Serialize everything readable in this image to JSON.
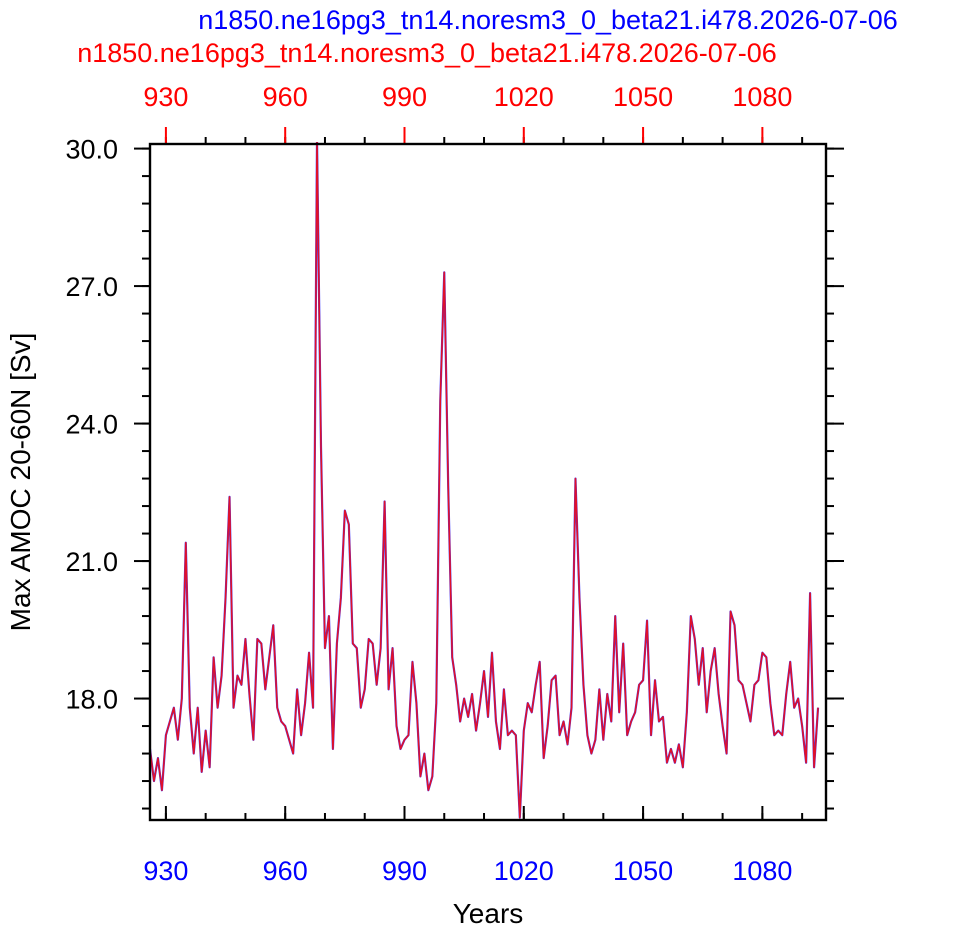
{
  "titles": {
    "blue": "n1850.ne16pg3_tn14.noresm3_0_beta21.i478.2026-07-06",
    "red": "n1850.ne16pg3_tn14.noresm3_0_beta21.i478.2026-07-06"
  },
  "colors": {
    "blue": "#0000ff",
    "red": "#ff0000",
    "line_blue": "#3a3aff",
    "line_red": "#e0102a",
    "axis": "#000000"
  },
  "chart_data": {
    "type": "line",
    "xlabel": "Years",
    "ylabel": "Max AMOC 20-60N [Sv]",
    "xlim": [
      926,
      1096
    ],
    "ylim": [
      15.35,
      30.1
    ],
    "x_ticks": [
      930,
      960,
      990,
      1020,
      1050,
      1080
    ],
    "x_tick_labels": [
      "930",
      "960",
      "990",
      "1020",
      "1050",
      "1080"
    ],
    "y_ticks": [
      18.0,
      21.0,
      24.0,
      27.0,
      30.0
    ],
    "y_tick_labels": [
      "18.0",
      "21.0",
      "24.0",
      "27.0",
      "30.0"
    ],
    "x_start": 926,
    "series": [
      {
        "color": "line_blue",
        "values": [
          16.9,
          16.2,
          16.7,
          16.0,
          17.2,
          17.5,
          17.8,
          17.1,
          18.0,
          21.4,
          17.8,
          16.8,
          17.8,
          16.4,
          17.3,
          16.5,
          18.9,
          17.8,
          18.5,
          20.2,
          22.4,
          17.8,
          18.5,
          18.3,
          19.3,
          18.1,
          17.1,
          19.3,
          19.2,
          18.2,
          18.9,
          19.6,
          17.8,
          17.5,
          17.4,
          17.1,
          16.8,
          18.2,
          17.2,
          17.9,
          19.0,
          17.8,
          30.2,
          23.5,
          19.1,
          19.8,
          16.9,
          19.2,
          20.2,
          22.1,
          21.8,
          19.2,
          19.1,
          17.8,
          18.2,
          19.3,
          19.2,
          18.3,
          19.1,
          22.3,
          18.2,
          19.1,
          17.4,
          16.9,
          17.1,
          17.2,
          18.8,
          17.9,
          16.3,
          16.8,
          16.0,
          16.3,
          17.9,
          24.5,
          27.3,
          22.6,
          18.9,
          18.3,
          17.5,
          18.0,
          17.6,
          18.1,
          17.3,
          17.9,
          18.6,
          17.6,
          19.0,
          17.5,
          16.9,
          18.2,
          17.2,
          17.3,
          17.2,
          15.4,
          17.3,
          17.9,
          17.7,
          18.3,
          18.8,
          16.7,
          17.4,
          18.4,
          18.5,
          17.2,
          17.5,
          17.0,
          17.8,
          22.8,
          20.2,
          18.3,
          17.2,
          16.8,
          17.1,
          18.2,
          17.1,
          18.1,
          17.5,
          19.8,
          17.7,
          19.2,
          17.2,
          17.5,
          17.7,
          18.3,
          18.4,
          19.7,
          17.2,
          18.4,
          17.5,
          17.6,
          16.6,
          16.9,
          16.6,
          17.0,
          16.5,
          17.7,
          19.8,
          19.3,
          18.3,
          19.1,
          17.7,
          18.6,
          19.1,
          18.1,
          17.4,
          16.8,
          19.9,
          19.6,
          18.4,
          18.3,
          17.9,
          17.5,
          18.3,
          18.4,
          19.0,
          18.9,
          17.9,
          17.2,
          17.3,
          17.2,
          18.1,
          18.8,
          17.8,
          18.0,
          17.4,
          16.6,
          20.3,
          16.5,
          17.8
        ]
      },
      {
        "color": "line_red",
        "values": [
          16.9,
          16.2,
          16.7,
          16.0,
          17.2,
          17.5,
          17.8,
          17.1,
          18.0,
          21.4,
          17.8,
          16.8,
          17.8,
          16.4,
          17.3,
          16.5,
          18.9,
          17.8,
          18.5,
          20.2,
          22.4,
          17.8,
          18.5,
          18.3,
          19.3,
          18.1,
          17.1,
          19.3,
          19.2,
          18.2,
          18.9,
          19.6,
          17.8,
          17.5,
          17.4,
          17.1,
          16.8,
          18.2,
          17.2,
          17.9,
          19.0,
          17.8,
          30.2,
          23.5,
          19.1,
          19.8,
          16.9,
          19.2,
          20.2,
          22.1,
          21.8,
          19.2,
          19.1,
          17.8,
          18.2,
          19.3,
          19.2,
          18.3,
          19.1,
          22.3,
          18.2,
          19.1,
          17.4,
          16.9,
          17.1,
          17.2,
          18.8,
          17.9,
          16.3,
          16.8,
          16.0,
          16.3,
          17.9,
          24.5,
          27.3,
          22.6,
          18.9,
          18.3,
          17.5,
          18.0,
          17.6,
          18.1,
          17.3,
          17.9,
          18.6,
          17.6,
          19.0,
          17.5,
          16.9,
          18.2,
          17.2,
          17.3,
          17.2,
          15.4,
          17.3,
          17.9,
          17.7,
          18.3,
          18.8,
          16.7,
          17.4,
          18.4,
          18.5,
          17.2,
          17.5,
          17.0,
          17.8,
          22.8,
          20.2,
          18.3,
          17.2,
          16.8,
          17.1,
          18.2,
          17.1,
          18.1,
          17.5,
          19.8,
          17.7,
          19.2,
          17.2,
          17.5,
          17.7,
          18.3,
          18.4,
          19.7,
          17.2,
          18.4,
          17.5,
          17.6,
          16.6,
          16.9,
          16.6,
          17.0,
          16.5,
          17.7,
          19.8,
          19.3,
          18.3,
          19.1,
          17.7,
          18.6,
          19.1,
          18.1,
          17.4,
          16.8,
          19.9,
          19.6,
          18.4,
          18.3,
          17.9,
          17.5,
          18.3,
          18.4,
          19.0,
          18.9,
          17.9,
          17.2,
          17.3,
          17.2,
          18.1,
          18.8,
          17.8,
          18.0,
          17.4,
          16.6,
          20.3,
          16.5,
          17.8
        ]
      }
    ]
  }
}
